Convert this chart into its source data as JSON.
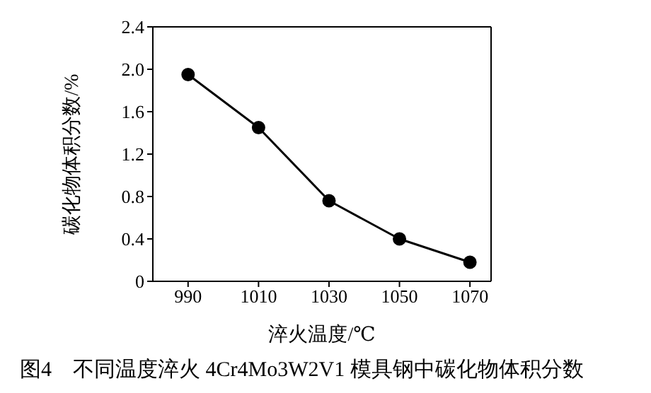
{
  "chart_data": {
    "type": "line",
    "xlabel": "淬火温度/℃",
    "ylabel": "碳化物体积分数/%",
    "x": [
      990,
      1010,
      1030,
      1050,
      1070
    ],
    "series": [
      {
        "color": "#000000",
        "values": [
          1.95,
          1.45,
          0.76,
          0.4,
          0.18
        ]
      }
    ],
    "xlim": [
      980,
      1076
    ],
    "xticks": [
      990,
      1010,
      1030,
      1050,
      1070
    ],
    "ylim": [
      0,
      2.4
    ],
    "yticks": [
      0,
      0.4,
      0.8,
      1.2,
      1.6,
      {
        "value": 2,
        "label": "2.0"
      },
      2.4
    ],
    "grid": false,
    "legend": false,
    "marker": "circle",
    "line_style": "solid",
    "annotations": [
      "图4　不同温度淬火 4Cr4Mo3W2V1 模具钢中碳化物体积分数"
    ]
  }
}
